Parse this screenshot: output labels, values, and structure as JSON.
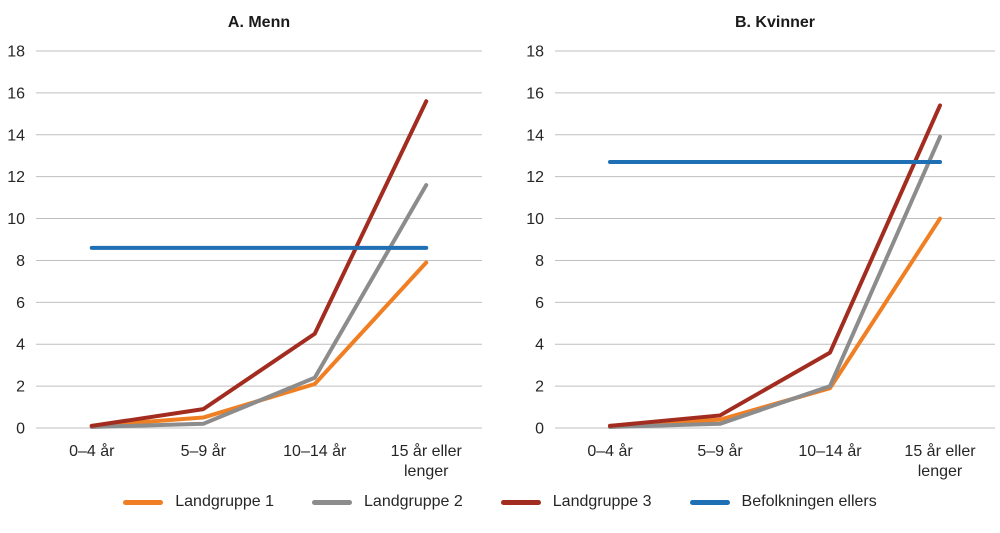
{
  "chart_data": [
    {
      "type": "line",
      "title": "A. Menn",
      "categories": [
        "0–4 år",
        "5–9 år",
        "10–14 år",
        "15 år eller\nlenger"
      ],
      "series": [
        {
          "name": "Landgruppe 1",
          "color": "#F07F24",
          "values": [
            0.1,
            0.5,
            2.1,
            7.9
          ]
        },
        {
          "name": "Landgruppe 2",
          "color": "#8C8C8C",
          "values": [
            0.05,
            0.2,
            2.4,
            11.6
          ]
        },
        {
          "name": "Landgruppe 3",
          "color": "#A32C20",
          "values": [
            0.1,
            0.9,
            4.5,
            15.6
          ]
        },
        {
          "name": "Befolkningen ellers",
          "color": "#1F6FB4",
          "values": [
            8.6,
            8.6,
            8.6,
            8.6
          ]
        }
      ],
      "ylim": [
        0,
        18
      ],
      "yticks": [
        0,
        2,
        4,
        6,
        8,
        10,
        12,
        14,
        16,
        18
      ],
      "grid": true,
      "legend_position": "bottom-shared"
    },
    {
      "type": "line",
      "title": "B. Kvinner",
      "categories": [
        "0–4 år",
        "5–9 år",
        "10–14 år",
        "15 år eller\nlenger"
      ],
      "series": [
        {
          "name": "Landgruppe 1",
          "color": "#F07F24",
          "values": [
            0.1,
            0.4,
            1.9,
            10.0
          ]
        },
        {
          "name": "Landgruppe 2",
          "color": "#8C8C8C",
          "values": [
            0.05,
            0.2,
            2.0,
            13.9
          ]
        },
        {
          "name": "Landgruppe 3",
          "color": "#A32C20",
          "values": [
            0.1,
            0.6,
            3.6,
            15.4
          ]
        },
        {
          "name": "Befolkningen ellers",
          "color": "#1F6FB4",
          "values": [
            12.7,
            12.7,
            12.7,
            12.7
          ]
        }
      ],
      "ylim": [
        0,
        18
      ],
      "yticks": [
        0,
        2,
        4,
        6,
        8,
        10,
        12,
        14,
        16,
        18
      ],
      "grid": true,
      "legend_position": "bottom-shared"
    }
  ],
  "legend": {
    "items": [
      {
        "label": "Landgruppe 1",
        "color": "#F07F24"
      },
      {
        "label": "Landgruppe 2",
        "color": "#8C8C8C"
      },
      {
        "label": "Landgruppe 3",
        "color": "#A32C20"
      },
      {
        "label": "Befolkningen ellers",
        "color": "#1F6FB4"
      }
    ]
  },
  "style_colors": {
    "gridline": "#BFBFBF",
    "axis_text": "#262626",
    "title_text": "#1A1A1A"
  }
}
